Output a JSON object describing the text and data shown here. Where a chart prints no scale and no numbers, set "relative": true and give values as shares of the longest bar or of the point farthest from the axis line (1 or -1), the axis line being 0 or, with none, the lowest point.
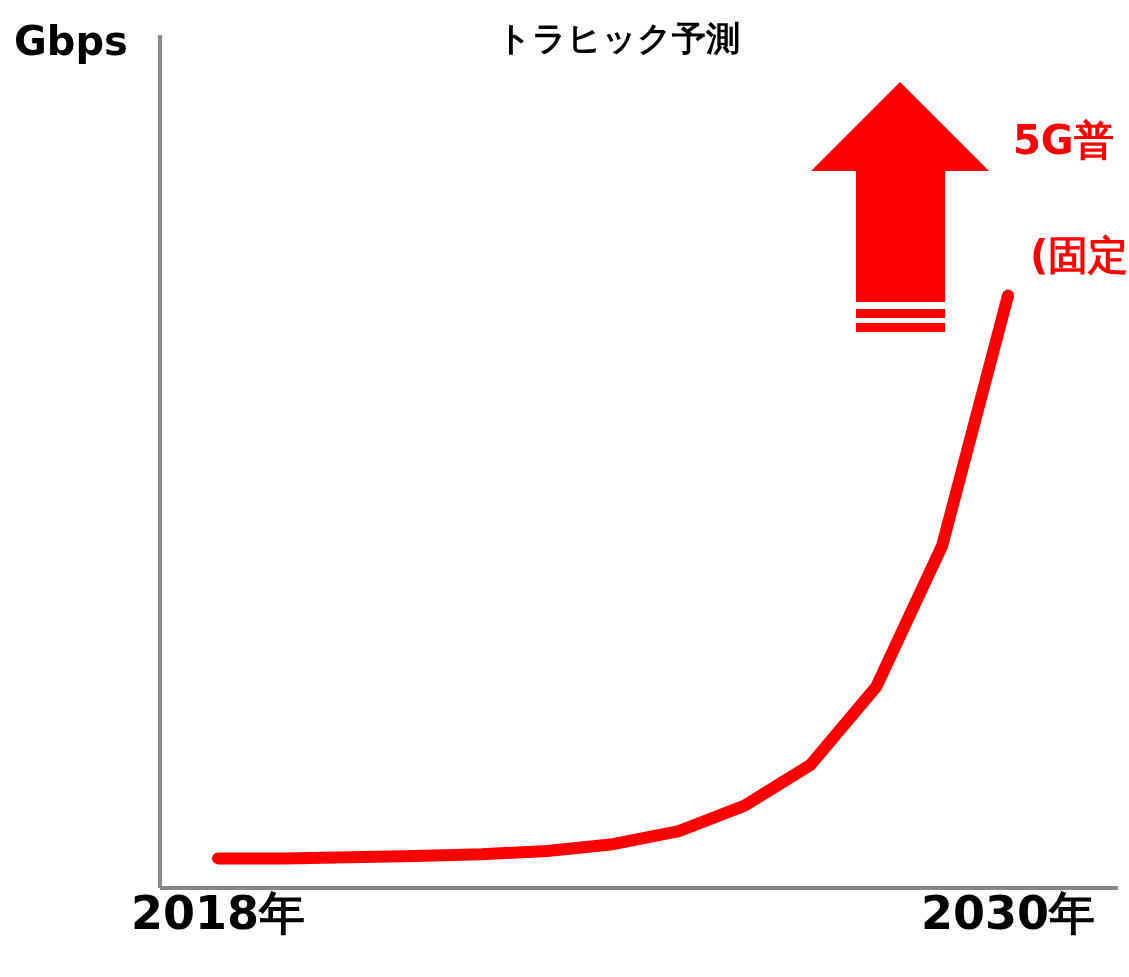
{
  "chart_data": {
    "type": "line",
    "title": "トラヒック予測",
    "relative": true,
    "categories": [
      "2018年",
      null,
      null,
      null,
      null,
      null,
      null,
      null,
      null,
      null,
      null,
      null,
      "2030年"
    ],
    "series": [
      {
        "color": "#ff0000",
        "values": [
          0.05,
          0.05,
          0.052,
          0.054,
          0.057,
          0.0625,
          0.074,
          0.096,
          0.139,
          0.208,
          0.34,
          0.578,
          1
        ]
      }
    ],
    "annotations": [
      "Gbps",
      "5G普",
      "(固定"
    ],
    "grid": false,
    "legend": false,
    "marker": "none",
    "line_style": "solid"
  }
}
